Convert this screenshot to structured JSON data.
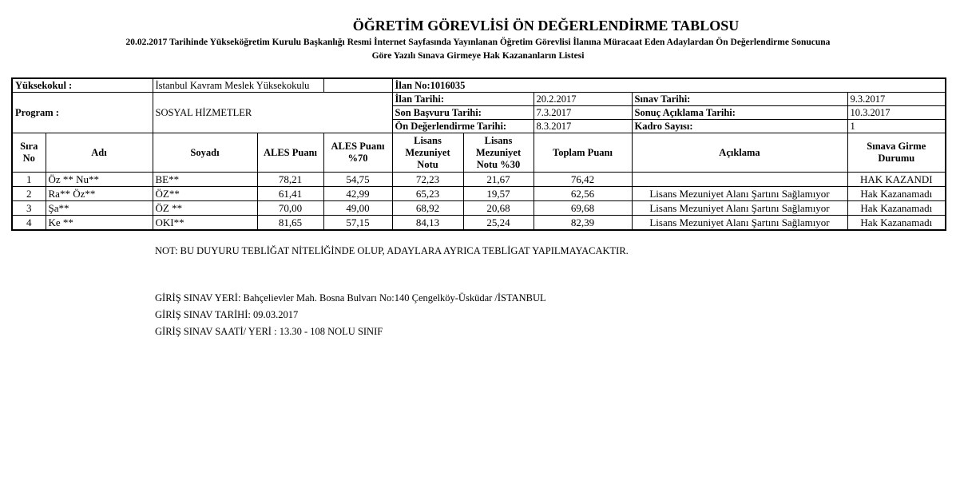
{
  "header": {
    "title": "ÖĞRETİM GÖREVLİSİ ÖN DEĞERLENDİRME TABLOSU",
    "subtitle_line1": "20.02.2017 Tarihinde Yükseköğretim Kurulu Başkanlığı Resmi İnternet Sayfasında Yayınlanan Öğretim Görevlisi İlanına Müracaat Eden Adaylardan Ön Değerlendirme Sonucuna",
    "subtitle_line2": "Göre Yazılı Sınava Girmeye Hak Kazananların Listesi"
  },
  "info": {
    "yuksekokul_label": "Yüksekokul :",
    "yuksekokul_value": "İstanbul Kavram Meslek Yüksekokulu",
    "ilan_no": "İlan No:1016035",
    "program_label": "Program :",
    "program_value": "SOSYAL HİZMETLER",
    "ilan_tarihi_label": "İlan Tarihi:",
    "ilan_tarihi": "20.2.2017",
    "son_basvuru_label": "Son Başvuru Tarihi:",
    "son_basvuru": "7.3.2017",
    "on_deg_label": "Ön Değerlendirme Tarihi:",
    "on_deg": "8.3.2017",
    "sinav_tarihi_label": "Sınav Tarihi:",
    "sinav_tarihi": "9.3.2017",
    "sonuc_label": "Sonuç Açıklama Tarihi:",
    "sonuc": "10.3.2017",
    "kadro_label": "Kadro Sayısı:",
    "kadro": "1"
  },
  "columns": [
    "Sıra No",
    "Adı",
    "Soyadı",
    "ALES Puanı",
    "ALES Puanı %70",
    "Lisans Mezuniyet Notu",
    "Lisans Mezuniyet Notu %30",
    "Toplam Puanı",
    "Açıklama",
    "Sınava Girme Durumu"
  ],
  "rows": [
    [
      "1",
      "Öz ** Nu**",
      "BE**",
      "78,21",
      "54,75",
      "72,23",
      "21,67",
      "76,42",
      "",
      "HAK KAZANDI"
    ],
    [
      "2",
      "Ra**   Öz**",
      "ÖZ**",
      "61,41",
      "42,99",
      "65,23",
      "19,57",
      "62,56",
      "Lisans Mezuniyet Alanı Şartını Sağlamıyor",
      "Hak Kazanamadı"
    ],
    [
      "3",
      "Şa**",
      "ÖZ **",
      "70,00",
      "49,00",
      "68,92",
      "20,68",
      "69,68",
      "Lisans Mezuniyet Alanı Şartını Sağlamıyor",
      "Hak Kazanamadı"
    ],
    [
      "4",
      "Ke **",
      "OKI**",
      "81,65",
      "57,15",
      "84,13",
      "25,24",
      "82,39",
      "Lisans Mezuniyet Alanı Şartını Sağlamıyor",
      "Hak Kazanamadı"
    ]
  ],
  "notes": {
    "not": "NOT: BU DUYURU TEBLİĞAT NİTELİĞİNDE OLUP, ADAYLARA AYRICA TEBLİGAT YAPILMAYACAKTIR.",
    "yer": "GİRİŞ SINAV YERİ: Bahçelievler Mah. Bosna Bulvarı No:140 Çengelköy-Üsküdar /İSTANBUL",
    "tarih": "GİRİŞ SINAV TARİHİ: 09.03.2017",
    "saat": "GİRİŞ SINAV SAATİ/ YERİ : 13.30 - 108 NOLU SINIF"
  }
}
